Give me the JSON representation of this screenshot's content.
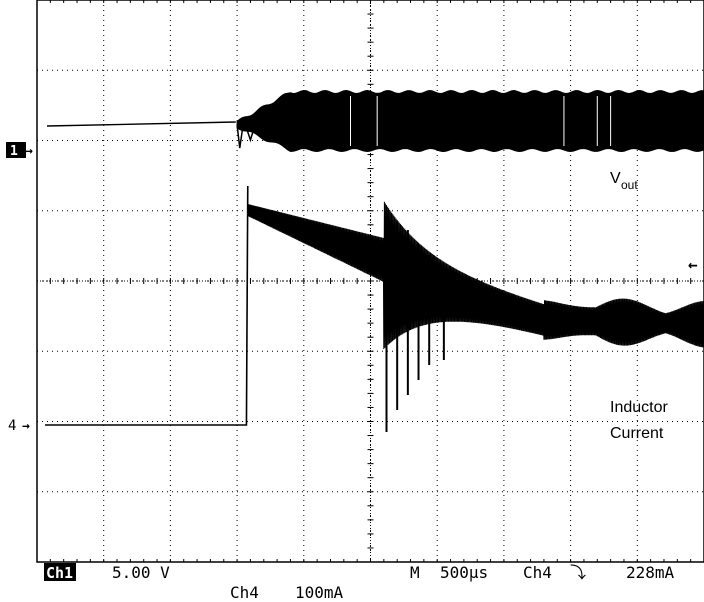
{
  "chart_data": {
    "type": "line",
    "title": "",
    "xlabel": "",
    "ylabel": "",
    "grid": true,
    "divisions": {
      "x": 10,
      "y": 8
    },
    "time_per_div": "500µs",
    "series": [
      {
        "name": "Vout",
        "channel": "Ch1",
        "scale": "5.00 V",
        "color": "#000000",
        "description_points_ms": [
          {
            "t": 0.0,
            "level_div": 0.35,
            "band_div": 0.0
          },
          {
            "t": 1.5,
            "level_div": 0.45,
            "band_div": 0.0
          },
          {
            "t": 1.7,
            "level_div": 0.5,
            "band_div": 0.6
          },
          {
            "t": 2.0,
            "level_div": 0.8,
            "band_div": 0.8
          },
          {
            "t": 10.0,
            "level_div": 0.8,
            "band_div": 0.8
          }
        ]
      },
      {
        "name": "Inductor Current",
        "channel": "Ch4",
        "scale": "100mA",
        "color": "#000000",
        "description_points_ms": [
          {
            "t": 0.0,
            "level_div": 0.0
          },
          {
            "t": 1.55,
            "level_div": 0.0
          },
          {
            "t": 1.58,
            "level_div": 3.4
          },
          {
            "t": 2.6,
            "level_div": 2.3
          },
          {
            "t": 3.0,
            "level_div": 1.9
          },
          {
            "t": 10.0,
            "level_div": 1.1
          }
        ]
      }
    ]
  },
  "labels": {
    "vout_main": "V",
    "vout_sub": "out",
    "inductor_line1": "Inductor",
    "inductor_line2": "Current",
    "ch1_marker": "1",
    "ch4_marker": "4",
    "arrow": "→",
    "trigger_arrow": "←"
  },
  "status": {
    "ch1_tag": "Ch1",
    "ch1_scale": "5.00 V",
    "ch4_label": "Ch4",
    "ch4_scale": "100mA",
    "timebase_label": "M",
    "timebase_value": "500µs",
    "trigger_source": "Ch4",
    "trigger_slope": "⤵",
    "trigger_level": "228mA"
  }
}
